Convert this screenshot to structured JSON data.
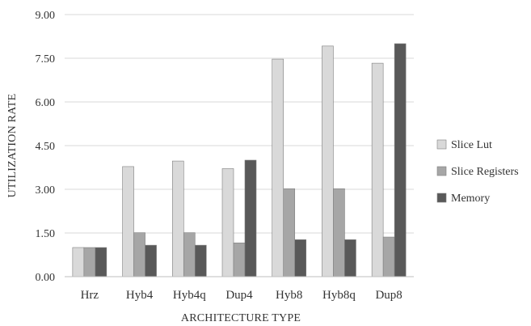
{
  "chart_data": {
    "type": "bar",
    "title": "",
    "xlabel": "ARCHITECTURE TYPE",
    "ylabel": "UTILIZATION RATE",
    "ylim": [
      0,
      9
    ],
    "yticks": [
      "0.00",
      "1.50",
      "3.00",
      "4.50",
      "6.00",
      "7.50",
      "9.00"
    ],
    "grid": "horizontal",
    "legend_position": "right",
    "categories": [
      "Hrz",
      "Hyb4",
      "Hyb4q",
      "Dup4",
      "Hyb8",
      "Hyb8q",
      "Dup8"
    ],
    "series": [
      {
        "name": "Slice Lut",
        "color": "#d9d9d9",
        "values": [
          1.0,
          3.78,
          3.97,
          3.71,
          7.47,
          7.92,
          7.33
        ]
      },
      {
        "name": "Slice Registers",
        "color": "#a6a6a6",
        "values": [
          1.0,
          1.51,
          1.51,
          1.16,
          3.02,
          3.02,
          1.36
        ]
      },
      {
        "name": "Memory",
        "color": "#595959",
        "values": [
          1.0,
          1.08,
          1.08,
          4.0,
          1.27,
          1.27,
          8.0
        ]
      }
    ]
  }
}
